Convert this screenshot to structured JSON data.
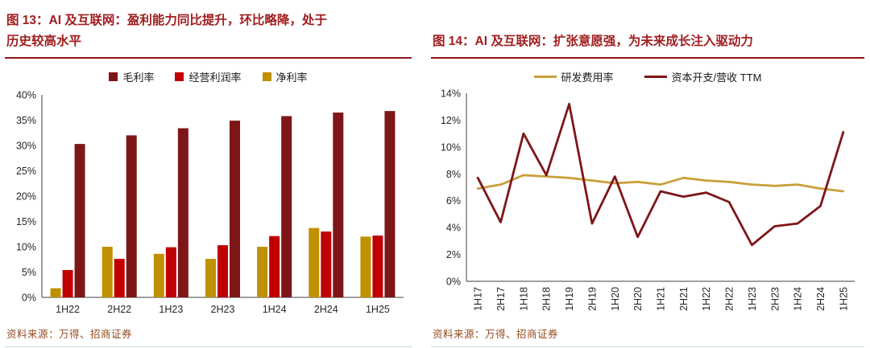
{
  "colors": {
    "title_red": "#A01E20",
    "rule": "#8C1618",
    "maroon": "#7E1618",
    "red": "#C00000",
    "gold": "#BF9000",
    "gold_line": "#C9A03C",
    "source_text": "#944A1F",
    "axis_text": "#262626",
    "axis_line": "#404040",
    "bottom_rule": "#CBD7DD"
  },
  "left_panel": {
    "title": "图 13：AI 及互联网：盈利能力同比提升，环比略降，处于历史较高水平",
    "source": "资料来源：万得、招商证券",
    "legend": [
      {
        "label": "毛利率",
        "color_key": "maroon",
        "marker": "square"
      },
      {
        "label": "经营利润率",
        "color_key": "red",
        "marker": "square"
      },
      {
        "label": "净利率",
        "color_key": "gold",
        "marker": "square"
      }
    ],
    "chart_data": {
      "type": "bar",
      "title": "图 13：AI 及互联网：盈利能力同比提升，环比略降，处于历史较高水平",
      "categories": [
        "1H22",
        "2H22",
        "1H23",
        "2H23",
        "1H24",
        "2H24",
        "1H25"
      ],
      "series": [
        {
          "name": "净利率",
          "color_key": "gold",
          "values": [
            1.8,
            10.0,
            8.6,
            7.6,
            10.0,
            13.7,
            12.0
          ]
        },
        {
          "name": "经营利润率",
          "color_key": "red",
          "values": [
            5.4,
            7.6,
            9.9,
            10.3,
            12.1,
            13.0,
            12.2
          ]
        },
        {
          "name": "毛利率",
          "color_key": "maroon",
          "values": [
            30.3,
            32.0,
            33.4,
            34.9,
            35.8,
            36.5,
            36.8
          ]
        }
      ],
      "xlabel": "",
      "ylabel": "",
      "ylim": [
        0,
        40
      ],
      "ytick_step": 5,
      "ytick_format": "percent",
      "grid": false,
      "legend_position": "top"
    }
  },
  "right_panel": {
    "title": "图 14：AI 及互联网：扩张意愿强，为未来成长注入驱动力",
    "source": "资料来源：万得、招商证券",
    "legend": [
      {
        "label": "研发费用率",
        "color_key": "gold_line",
        "marker": "line"
      },
      {
        "label": "资本开支/营收 TTM",
        "color_key": "maroon",
        "marker": "line"
      }
    ],
    "chart_data": {
      "type": "line",
      "title": "图 14：AI 及互联网：扩张意愿强，为未来成长注入驱动力",
      "x": [
        "1H17",
        "2H17",
        "1H18",
        "2H18",
        "1H19",
        "2H19",
        "1H20",
        "2H20",
        "1H21",
        "2H21",
        "1H22",
        "2H22",
        "1H23",
        "2H23",
        "1H24",
        "2H24",
        "1H25"
      ],
      "series": [
        {
          "name": "研发费用率",
          "color_key": "gold_line",
          "values": [
            6.9,
            7.2,
            7.9,
            7.8,
            7.7,
            7.5,
            7.3,
            7.4,
            7.2,
            7.7,
            7.5,
            7.4,
            7.2,
            7.1,
            7.2,
            6.9,
            6.7
          ]
        },
        {
          "name": "资本开支/营收 TTM",
          "color_key": "maroon",
          "values": [
            7.7,
            4.4,
            11.0,
            7.9,
            13.2,
            4.3,
            7.8,
            3.3,
            6.7,
            6.3,
            6.6,
            5.9,
            2.7,
            4.1,
            4.3,
            5.6,
            11.1
          ]
        }
      ],
      "xlabel": "",
      "ylabel": "",
      "ylim": [
        0,
        14
      ],
      "ytick_step": 2,
      "ytick_format": "percent",
      "grid": false,
      "legend_position": "top",
      "x_labels_rotated": true
    }
  }
}
